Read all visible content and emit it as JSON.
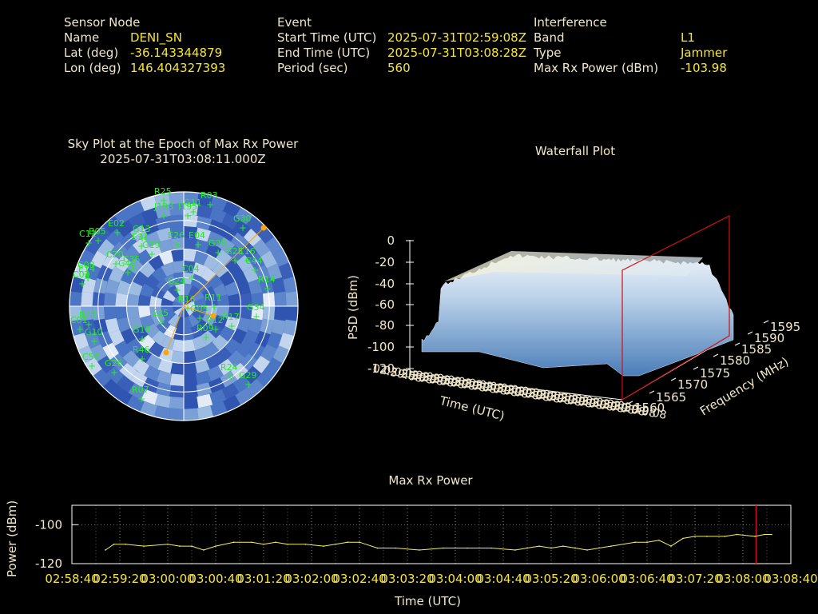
{
  "header": {
    "sensor": {
      "title": "Sensor Node",
      "rows": [
        {
          "label": "Name",
          "value": "DENI_SN"
        },
        {
          "label": "Lat (deg)",
          "value": "-36.143344879"
        },
        {
          "label": "Lon (deg)",
          "value": "146.404327393"
        }
      ]
    },
    "event": {
      "title": "Event",
      "rows": [
        {
          "label": "Start Time (UTC)",
          "value": "2025-07-31T02:59:08Z"
        },
        {
          "label": "End Time (UTC)",
          "value": "2025-07-31T03:08:28Z"
        },
        {
          "label": "Period (sec)",
          "value": "560"
        }
      ]
    },
    "interference": {
      "title": "Interference",
      "rows": [
        {
          "label": "Band",
          "value": "L1"
        },
        {
          "label": "Type",
          "value": "Jammer"
        },
        {
          "label": "Max Rx Power (dBm)",
          "value": "-103.98"
        }
      ]
    }
  },
  "colors": {
    "text": "#f0e6c8",
    "value": "#f5e536",
    "sat_label": "#22ee22",
    "sky_base": "#3a5fb8",
    "marker": "#ffa500",
    "cursor": "#d01010",
    "line": "#f5f060"
  },
  "chart_data": [
    {
      "type": "scatter",
      "title": "Sky Plot at the Epoch of Max Rx Power",
      "subtitle": "2025-07-31T03:08:11.000Z",
      "satellites": [
        "R25",
        "R03",
        "J193",
        "I195",
        "G11",
        "G30",
        "E02",
        "G13",
        "C12",
        "B05",
        "E31",
        "G19",
        "E04",
        "C20",
        "C35",
        "C08",
        "E26",
        "G28",
        "C16",
        "C04",
        "G40",
        "C03",
        "E14",
        "R14",
        "G24",
        "C44",
        "G25",
        "R16",
        "R17",
        "R09",
        "R11",
        "G05",
        "G34",
        "E25",
        "R12",
        "R43",
        "C01",
        "G10",
        "G18",
        "R46",
        "C50",
        "G26",
        "R24",
        "R07",
        "G29"
      ]
    },
    {
      "type": "area",
      "title": "Waterfall Plot",
      "xlabel": "Time (UTC)",
      "ylabel": "Frequency (MHz)",
      "zlabel": "PSD (dBm)",
      "z_ticks": [
        "0",
        "-20",
        "-40",
        "-60",
        "-80",
        "-100",
        "-120"
      ],
      "freq_ticks": [
        "1560",
        "1565",
        "1570",
        "1575",
        "1580",
        "1585",
        "1590",
        "1595"
      ],
      "time_tick_label": "02:59:08",
      "time_tick_count": 24
    },
    {
      "type": "line",
      "title": "Max Rx Power",
      "xlabel": "Time (UTC)",
      "ylabel": "Power (dBm)",
      "ylim": [
        -120,
        -90
      ],
      "y_ticks": [
        "-100",
        "-120"
      ],
      "x_ticks": [
        "02:58:40",
        "02:59:20",
        "03:00:00",
        "03:00:40",
        "03:01:20",
        "03:02:00",
        "03:02:40",
        "03:03:20",
        "03:04:00",
        "03:04:40",
        "03:05:20",
        "03:06:00",
        "03:06:40",
        "03:07:20",
        "03:08:00",
        "03:08:40"
      ],
      "x_tick_secs": [
        0,
        40,
        80,
        120,
        160,
        200,
        240,
        280,
        320,
        360,
        400,
        440,
        480,
        520,
        560,
        600
      ],
      "x_range_sec": [
        0,
        600
      ],
      "cursor_sec": 571,
      "x_sec": [
        28,
        35,
        45,
        60,
        80,
        90,
        100,
        110,
        120,
        135,
        150,
        160,
        170,
        180,
        195,
        210,
        220,
        230,
        240,
        255,
        270,
        290,
        310,
        330,
        350,
        370,
        380,
        390,
        400,
        410,
        420,
        430,
        450,
        470,
        480,
        490,
        500,
        510,
        520,
        530,
        545,
        555,
        570,
        578,
        584
      ],
      "values": [
        -113,
        -110,
        -110,
        -111,
        -110,
        -111,
        -111,
        -113,
        -111,
        -109,
        -109,
        -110,
        -109,
        -110,
        -110,
        -111,
        -110,
        -109,
        -109,
        -112,
        -112,
        -113,
        -112,
        -112,
        -112,
        -113,
        -112,
        -111,
        -112,
        -111,
        -112,
        -113,
        -111,
        -109,
        -109,
        -108,
        -111,
        -107,
        -106,
        -106,
        -106,
        -105,
        -106,
        -105,
        -105
      ]
    }
  ]
}
